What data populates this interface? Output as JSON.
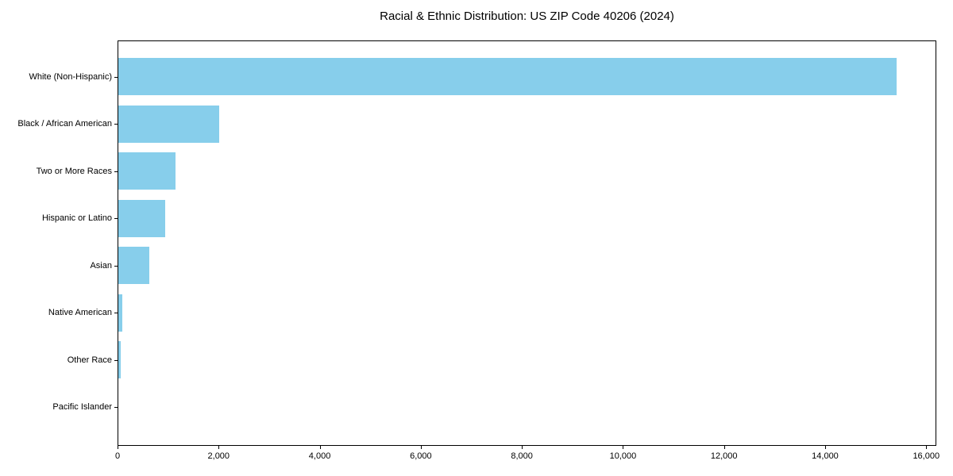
{
  "chart_data": {
    "type": "bar",
    "orientation": "horizontal",
    "title": "Racial & Ethnic Distribution: US ZIP Code 40206 (2024)",
    "xlabel": "",
    "ylabel": "",
    "categories": [
      "White (Non-Hispanic)",
      "Black / African American",
      "Two or More Races",
      "Hispanic or Latino",
      "Asian",
      "Native American",
      "Other Race",
      "Pacific Islander"
    ],
    "values": [
      15400,
      2000,
      1130,
      930,
      610,
      80,
      45,
      0
    ],
    "xlim": [
      0,
      16200
    ],
    "x_ticks": [
      0,
      2000,
      4000,
      6000,
      8000,
      10000,
      12000,
      14000,
      16000
    ],
    "x_tick_labels": [
      "0",
      "2,000",
      "4,000",
      "6,000",
      "8,000",
      "10,000",
      "12,000",
      "14,000",
      "16,000"
    ],
    "bar_color": "#87CEEB",
    "spine_color": "#000000",
    "grid": false,
    "legend": false,
    "category_order": "largest_at_top"
  }
}
